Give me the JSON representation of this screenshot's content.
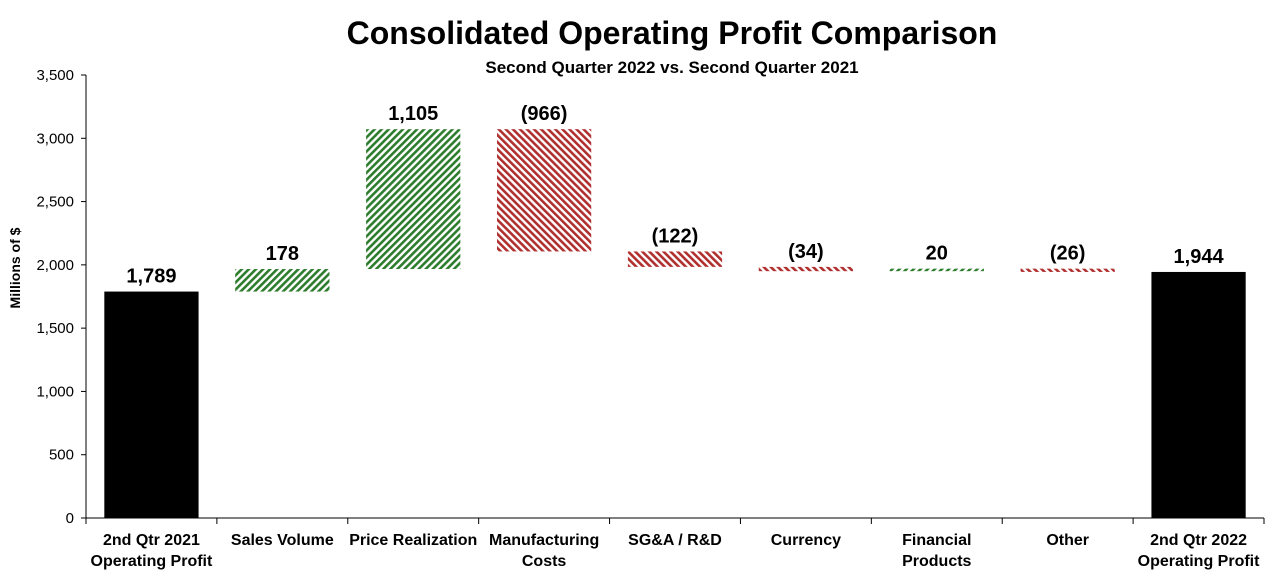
{
  "chart_data": {
    "type": "bar",
    "subtype": "waterfall",
    "title": "Consolidated Operating Profit Comparison",
    "subtitle": "Second Quarter 2022 vs. Second Quarter 2021",
    "ylabel": "Millions of $",
    "xlabel": "",
    "ylim": [
      0,
      3500
    ],
    "yticks": [
      0,
      500,
      1000,
      1500,
      2000,
      2500,
      3000,
      3500
    ],
    "ytick_labels": [
      "0",
      "500",
      "1,000",
      "1,500",
      "2,000",
      "2,500",
      "3,000",
      "3,500"
    ],
    "categories": [
      [
        "2nd Qtr 2021",
        "Operating Profit"
      ],
      [
        "Sales Volume"
      ],
      [
        "Price Realization"
      ],
      [
        "Manufacturing",
        "Costs"
      ],
      [
        "SG&A / R&D"
      ],
      [
        "Currency"
      ],
      [
        "Financial",
        "Products"
      ],
      [
        "Other"
      ],
      [
        "2nd Qtr 2022",
        "Operating Profit"
      ]
    ],
    "kinds": [
      "total",
      "delta",
      "delta",
      "delta",
      "delta",
      "delta",
      "delta",
      "delta",
      "total"
    ],
    "values": [
      1789,
      178,
      1105,
      -966,
      -122,
      -34,
      20,
      -26,
      1944
    ],
    "data_labels": [
      "1,789",
      "178",
      "1,105",
      "(966)",
      "(122)",
      "(34)",
      "20",
      "(26)",
      "1,944"
    ],
    "colors": {
      "total": "#000000",
      "increase": "#2e7d2e",
      "decrease": "#b03030"
    }
  }
}
